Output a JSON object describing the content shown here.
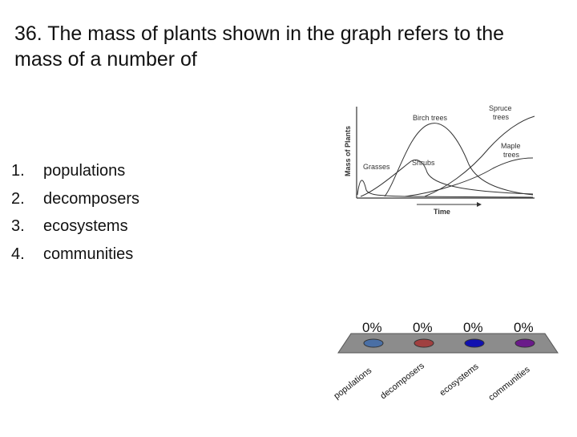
{
  "question": {
    "line1": "36. The mass of plants shown in the graph refers to the",
    "line2": "mass of a number of"
  },
  "options": [
    {
      "num": "1.",
      "label": "populations"
    },
    {
      "num": "2.",
      "label": "decomposers"
    },
    {
      "num": "3.",
      "label": "ecosystems"
    },
    {
      "num": "4.",
      "label": "communities"
    }
  ],
  "graph": {
    "ylabel": "Mass of Plants",
    "xlabel": "Time",
    "curves": {
      "grasses": "Grasses",
      "shrubs": "Shrubs",
      "birch": "Birch trees",
      "spruce_line1": "Spruce",
      "spruce_line2": "trees",
      "maple_line1": "Maple",
      "maple_line2": "trees"
    }
  },
  "poll": {
    "results": [
      {
        "percent": "0%",
        "label": "populations",
        "color": "#4a6fa5"
      },
      {
        "percent": "0%",
        "label": "decomposers",
        "color": "#a04040"
      },
      {
        "percent": "0%",
        "label": "ecosystems",
        "color": "#1010b0"
      },
      {
        "percent": "0%",
        "label": "communities",
        "color": "#6a1a8a"
      }
    ],
    "platform_color": "#8c8c8c"
  }
}
